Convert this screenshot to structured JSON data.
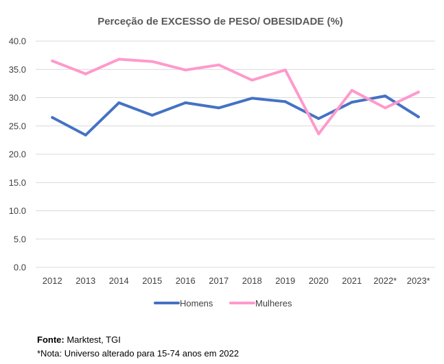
{
  "chart_data": {
    "type": "line",
    "title": "Perceção de EXCESSO de PESO/ OBESIDADE (%)",
    "categories": [
      "2012",
      "2013",
      "2014",
      "2015",
      "2016",
      "2017",
      "2018",
      "2019",
      "2020",
      "2021",
      "2022*",
      "2023*"
    ],
    "series": [
      {
        "name": "Homens",
        "color": "#4472C4",
        "values": [
          26.5,
          23.4,
          29.1,
          26.9,
          29.1,
          28.2,
          29.9,
          29.3,
          26.3,
          29.2,
          30.3,
          26.6
        ]
      },
      {
        "name": "Mulheres",
        "color": "#FF99CC",
        "values": [
          36.5,
          34.2,
          36.8,
          36.4,
          34.9,
          35.8,
          33.1,
          34.9,
          23.6,
          31.3,
          28.2,
          31.0
        ]
      }
    ],
    "yticks": [
      "0.0",
      "5.0",
      "10.0",
      "15.0",
      "20.0",
      "25.0",
      "30.0",
      "35.0",
      "40.0"
    ],
    "ylim": [
      0,
      40
    ],
    "grid": true,
    "legend_position": "bottom"
  },
  "footer": {
    "source_label": "Fonte:",
    "source_value": " Marktest, TGI",
    "note": "*Nota: Universo alterado para 15-74 anos em 2022"
  }
}
